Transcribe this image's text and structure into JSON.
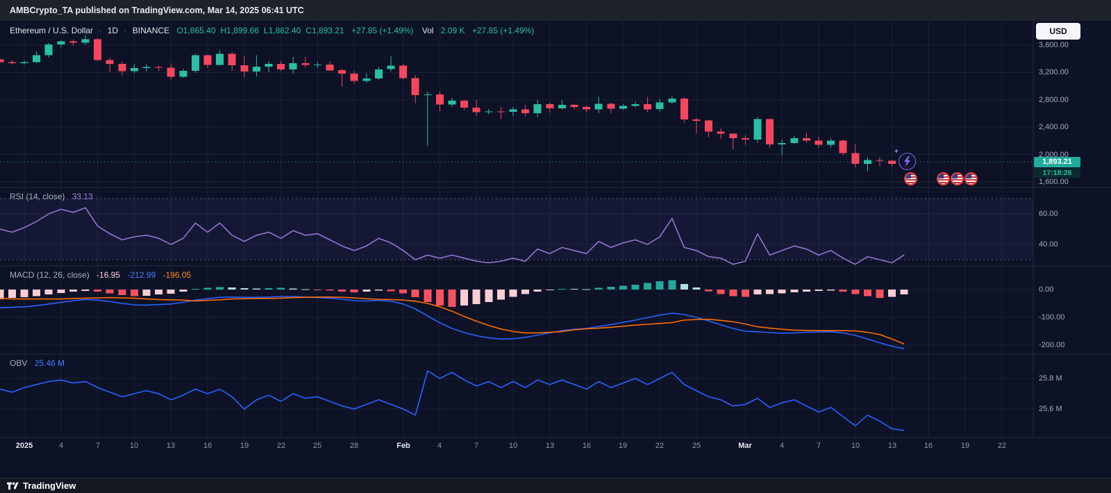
{
  "meta": {
    "publisher_bar": "AMBCrypto_TA published on TradingView.com, Mar 14, 2025 06:41 UTC"
  },
  "header": {
    "symbol_title": "Ethereum / U.S. Dollar",
    "separator": "·",
    "interval": "1D",
    "exchange": "BINANCE",
    "ohlc": [
      "O1,865.40",
      "H1,899.66",
      "L1,862.40",
      "C1,893.21"
    ],
    "change": "+27.85 (+1.49%)",
    "vol_label": "Vol",
    "vol_value": "2.09 K",
    "vol_change": "+27.85 (+1.49%)"
  },
  "currency_button": "USD",
  "last_price_badge": {
    "value": "1,893.21",
    "countdown": "17:18:26"
  },
  "panes": {
    "rsi": {
      "title": "RSI (14, close)",
      "value": "33.13"
    },
    "macd": {
      "title": "MACD (12, 26, close)",
      "hist_value": "-16.95",
      "macd_value": "-212.99",
      "signal_value": "-196.05"
    },
    "obv": {
      "title": "OBV",
      "value": "25.46 M"
    }
  },
  "axes": {
    "main": [
      {
        "label": "3,600.00",
        "value": 3600
      },
      {
        "label": "3,200.00",
        "value": 3200
      },
      {
        "label": "2,800.00",
        "value": 2800
      },
      {
        "label": "2,400.00",
        "value": 2400
      },
      {
        "label": "2,000.00",
        "value": 2000
      },
      {
        "label": "1,600.00",
        "value": 1600
      }
    ],
    "rsi": [
      {
        "label": "60.00",
        "value": 60
      },
      {
        "label": "40.00",
        "value": 40
      }
    ],
    "macd": [
      {
        "label": "0.00",
        "value": 0
      },
      {
        "label": "-100.00",
        "value": -100
      },
      {
        "label": "-200.00",
        "value": -200
      }
    ],
    "obv": [
      {
        "label": "25.8 M",
        "value": 25.8
      },
      {
        "label": "25.6 M",
        "value": 25.6
      }
    ]
  },
  "time_axis": {
    "ticks": [
      {
        "label": "2025",
        "day": 0,
        "major": true
      },
      {
        "label": "4",
        "day": 3
      },
      {
        "label": "7",
        "day": 6
      },
      {
        "label": "10",
        "day": 9
      },
      {
        "label": "13",
        "day": 12
      },
      {
        "label": "16",
        "day": 15
      },
      {
        "label": "19",
        "day": 18
      },
      {
        "label": "22",
        "day": 21
      },
      {
        "label": "25",
        "day": 24
      },
      {
        "label": "28",
        "day": 27
      },
      {
        "label": "Feb",
        "day": 31,
        "major": true
      },
      {
        "label": "4",
        "day": 34
      },
      {
        "label": "7",
        "day": 37
      },
      {
        "label": "10",
        "day": 40
      },
      {
        "label": "13",
        "day": 43
      },
      {
        "label": "16",
        "day": 46
      },
      {
        "label": "19",
        "day": 49
      },
      {
        "label": "22",
        "day": 52
      },
      {
        "label": "25",
        "day": 55
      },
      {
        "label": "Mar",
        "day": 59,
        "major": true
      },
      {
        "label": "4",
        "day": 62
      },
      {
        "label": "7",
        "day": 65
      },
      {
        "label": "10",
        "day": 68
      },
      {
        "label": "13",
        "day": 71
      },
      {
        "label": "16",
        "day": 74
      },
      {
        "label": "19",
        "day": 77
      },
      {
        "label": "22",
        "day": 80
      }
    ]
  },
  "stickers": {
    "lightning_count": 1,
    "us_flag_count": 4
  },
  "footer": {
    "brand": "TradingView"
  },
  "colors": {
    "background": "#0d1227",
    "up": "#2abfa4",
    "down": "#f6465d",
    "rsi": "#9575cd",
    "macd": "#2962ff",
    "signal": "#ff6d00",
    "obv": "#2962ff",
    "hist_up": "#26a69a",
    "hist_up_weak": "#b2dfdb",
    "hist_down": "#f7525f",
    "hist_down_weak": "#fbcdd4",
    "badge": "#1fab9c"
  },
  "chart_data": {
    "type": "candlestick",
    "title": "Ethereum / U.S. Dollar 1D BINANCE",
    "interval": "1D",
    "start_date": "2024-12-30",
    "end_date": "2025-03-14",
    "last_price": 1893.21,
    "price_axis_range": [
      1518,
      3955
    ],
    "candles": [
      [
        3392,
        3412,
        3333,
        3352
      ],
      [
        3352,
        3382,
        3318,
        3336
      ],
      [
        3336,
        3374,
        3315,
        3353
      ],
      [
        3353,
        3510,
        3336,
        3455
      ],
      [
        3455,
        3630,
        3420,
        3608
      ],
      [
        3608,
        3672,
        3571,
        3657
      ],
      [
        3657,
        3682,
        3592,
        3635
      ],
      [
        3635,
        3745,
        3605,
        3687
      ],
      [
        3687,
        3702,
        3358,
        3381
      ],
      [
        3381,
        3416,
        3207,
        3327
      ],
      [
        3327,
        3357,
        3158,
        3219
      ],
      [
        3219,
        3322,
        3193,
        3267
      ],
      [
        3267,
        3321,
        3215,
        3282
      ],
      [
        3282,
        3302,
        3224,
        3268
      ],
      [
        3268,
        3333,
        3092,
        3137
      ],
      [
        3137,
        3256,
        3125,
        3226
      ],
      [
        3226,
        3473,
        3196,
        3451
      ],
      [
        3451,
        3461,
        3265,
        3309
      ],
      [
        3309,
        3525,
        3305,
        3474
      ],
      [
        3474,
        3502,
        3224,
        3307
      ],
      [
        3307,
        3448,
        3132,
        3215
      ],
      [
        3215,
        3453,
        3142,
        3284
      ],
      [
        3284,
        3368,
        3204,
        3327
      ],
      [
        3327,
        3364,
        3222,
        3243
      ],
      [
        3243,
        3429,
        3183,
        3338
      ],
      [
        3338,
        3428,
        3272,
        3310
      ],
      [
        3310,
        3351,
        3269,
        3318
      ],
      [
        3318,
        3362,
        3232,
        3232
      ],
      [
        3232,
        3251,
        2998,
        3183
      ],
      [
        3183,
        3222,
        3038,
        3077
      ],
      [
        3077,
        3184,
        3050,
        3113
      ],
      [
        3113,
        3283,
        3091,
        3247
      ],
      [
        3247,
        3437,
        3213,
        3300
      ],
      [
        3300,
        3325,
        3101,
        3117
      ],
      [
        3117,
        3163,
        2750,
        2869
      ],
      [
        2869,
        2921,
        2125,
        2879
      ],
      [
        2879,
        2926,
        2632,
        2731
      ],
      [
        2731,
        2826,
        2699,
        2788
      ],
      [
        2788,
        2797,
        2655,
        2686
      ],
      [
        2686,
        2797,
        2562,
        2622
      ],
      [
        2622,
        2665,
        2588,
        2632
      ],
      [
        2632,
        2698,
        2520,
        2627
      ],
      [
        2627,
        2695,
        2559,
        2661
      ],
      [
        2661,
        2725,
        2557,
        2603
      ],
      [
        2603,
        2795,
        2546,
        2738
      ],
      [
        2738,
        2757,
        2613,
        2675
      ],
      [
        2675,
        2790,
        2663,
        2726
      ],
      [
        2726,
        2737,
        2660,
        2696
      ],
      [
        2696,
        2718,
        2615,
        2661
      ],
      [
        2661,
        2847,
        2605,
        2743
      ],
      [
        2743,
        2758,
        2606,
        2671
      ],
      [
        2671,
        2738,
        2655,
        2714
      ],
      [
        2714,
        2770,
        2688,
        2738
      ],
      [
        2738,
        2845,
        2617,
        2663
      ],
      [
        2663,
        2810,
        2630,
        2764
      ],
      [
        2764,
        2857,
        2746,
        2820
      ],
      [
        2820,
        2841,
        2470,
        2512
      ],
      [
        2512,
        2533,
        2313,
        2496
      ],
      [
        2496,
        2508,
        2253,
        2336
      ],
      [
        2336,
        2382,
        2230,
        2308
      ],
      [
        2308,
        2313,
        2076,
        2238
      ],
      [
        2238,
        2283,
        2142,
        2218
      ],
      [
        2218,
        2550,
        2172,
        2518
      ],
      [
        2518,
        2523,
        2100,
        2149
      ],
      [
        2149,
        2222,
        1993,
        2171
      ],
      [
        2171,
        2273,
        2155,
        2241
      ],
      [
        2241,
        2320,
        2176,
        2202
      ],
      [
        2202,
        2258,
        2101,
        2141
      ],
      [
        2141,
        2235,
        2105,
        2203
      ],
      [
        2203,
        2212,
        1989,
        2020
      ],
      [
        2020,
        2150,
        1813,
        1864
      ],
      [
        1864,
        1963,
        1754,
        1922
      ],
      [
        1922,
        1960,
        1829,
        1908
      ],
      [
        1908,
        1923,
        1821,
        1864
      ],
      [
        1865.4,
        1899.66,
        1862.4,
        1893.21
      ]
    ],
    "indicators": {
      "rsi": {
        "params": "14, close",
        "last": 33.13,
        "bands": [
          70,
          30
        ],
        "values": [
          50,
          48,
          51,
          55,
          60,
          63,
          61,
          64,
          52,
          47,
          43,
          45,
          46,
          44,
          40,
          44,
          54,
          48,
          54,
          46,
          42,
          46,
          48,
          44,
          49,
          46,
          47,
          43,
          39,
          36,
          39,
          44,
          41,
          36,
          30,
          33,
          31,
          33,
          31,
          29,
          28,
          29,
          31,
          29,
          37,
          34,
          38,
          36,
          34,
          42,
          38,
          41,
          43,
          40,
          45,
          57,
          38,
          36,
          32,
          31,
          27,
          29,
          47,
          33,
          36,
          39,
          37,
          33,
          36,
          31,
          27,
          32,
          30,
          28,
          33.13
        ]
      },
      "macd": {
        "params": "12, 26, close",
        "last_hist": -16.95,
        "last_macd": -212.99,
        "last_signal": -196.05,
        "macd": [
          -66,
          -64,
          -62,
          -58,
          -52,
          -46,
          -40,
          -36,
          -38,
          -43,
          -50,
          -55,
          -56,
          -54,
          -52,
          -46,
          -38,
          -33,
          -28,
          -27,
          -28,
          -28,
          -27,
          -25,
          -25,
          -27,
          -29,
          -31,
          -35,
          -40,
          -41,
          -39,
          -42,
          -52,
          -70,
          -95,
          -120,
          -140,
          -155,
          -166,
          -174,
          -178,
          -177,
          -172,
          -164,
          -156,
          -148,
          -143,
          -140,
          -133,
          -126,
          -118,
          -110,
          -101,
          -92,
          -85,
          -90,
          -100,
          -113,
          -127,
          -140,
          -150,
          -152,
          -155,
          -157,
          -156,
          -154,
          -153,
          -152,
          -156,
          -165,
          -178,
          -192,
          -204,
          -212.99
        ],
        "signal": [
          -31,
          -34,
          -34,
          -34,
          -34,
          -34,
          -32,
          -31,
          -30,
          -29,
          -30,
          -31,
          -34,
          -36,
          -37,
          -38,
          -41,
          -39,
          -37,
          -34,
          -33,
          -32,
          -32,
          -31,
          -29,
          -28,
          -27,
          -27,
          -28,
          -30,
          -33,
          -35,
          -36,
          -38,
          -42,
          -50,
          -62,
          -78,
          -97,
          -114,
          -129,
          -142,
          -151,
          -156,
          -156,
          -154,
          -151,
          -145,
          -141,
          -139,
          -136,
          -132,
          -128,
          -125,
          -122,
          -119,
          -110,
          -108,
          -107,
          -111,
          -116,
          -124,
          -134,
          -139,
          -143,
          -146,
          -147,
          -148,
          -148,
          -148,
          -149,
          -154,
          -162,
          -178,
          -196.05
        ],
        "hist": [
          -35,
          -30,
          -28,
          -24,
          -18,
          -12,
          -8,
          -5,
          -8,
          -14,
          -20,
          -24,
          -22,
          -18,
          -15,
          -8,
          3,
          6,
          9,
          7,
          5,
          4,
          5,
          6,
          4,
          1,
          -2,
          -4,
          -7,
          -10,
          -8,
          -4,
          -6,
          -14,
          -28,
          -45,
          -58,
          -62,
          -58,
          -52,
          -45,
          -36,
          -26,
          -16,
          -8,
          -2,
          3,
          2,
          1,
          6,
          10,
          14,
          18,
          24,
          30,
          34,
          20,
          8,
          -6,
          -16,
          -24,
          -26,
          -18,
          -16,
          -14,
          -10,
          -7,
          -5,
          -4,
          -8,
          -16,
          -24,
          -30,
          -26,
          -16.95
        ]
      },
      "obv": {
        "unit": "M",
        "last": 25.46,
        "values": [
          25.73,
          25.71,
          25.74,
          25.76,
          25.78,
          25.79,
          25.77,
          25.78,
          25.74,
          25.71,
          25.68,
          25.7,
          25.72,
          25.7,
          25.66,
          25.69,
          25.73,
          25.7,
          25.73,
          25.68,
          25.6,
          25.66,
          25.69,
          25.65,
          25.7,
          25.67,
          25.68,
          25.65,
          25.62,
          25.6,
          25.63,
          25.66,
          25.63,
          25.6,
          25.56,
          25.85,
          25.8,
          25.84,
          25.79,
          25.75,
          25.78,
          25.74,
          25.78,
          25.74,
          25.79,
          25.76,
          25.79,
          25.76,
          25.73,
          25.78,
          25.74,
          25.77,
          25.8,
          25.76,
          25.8,
          25.84,
          25.76,
          25.72,
          25.68,
          25.66,
          25.62,
          25.63,
          25.67,
          25.61,
          25.64,
          25.66,
          25.62,
          25.58,
          25.61,
          25.55,
          25.49,
          25.56,
          25.52,
          25.47,
          25.46
        ]
      }
    }
  }
}
